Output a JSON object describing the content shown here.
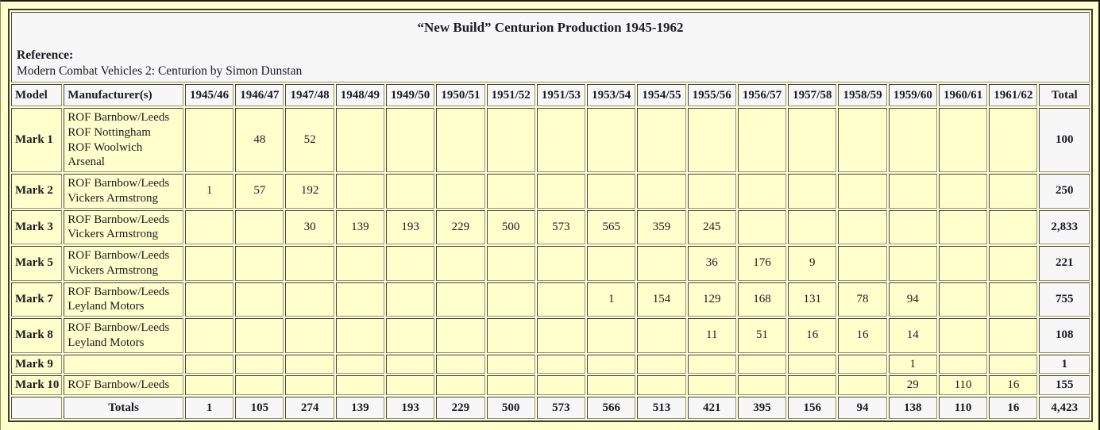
{
  "page": {
    "title": "“New Build” Centurion Production 1945-1962",
    "reference_label": "Reference:",
    "reference_text": "Modern Combat Vehicles 2: Centurion by Simon Dunstan"
  },
  "colors": {
    "page_background": "#FFFFCC",
    "data_cell_background": "#FFFFCC",
    "header_cell_background": "#F7F7F7",
    "text": "#1B1B25",
    "cell_border": "#808080",
    "table_border": "#3A3A3A"
  },
  "table": {
    "headers": [
      "Model",
      "Manufacturer(s)",
      "1945/46",
      "1946/47",
      "1947/48",
      "1948/49",
      "1949/50",
      "1950/51",
      "1951/52",
      "1951/53",
      "1953/54",
      "1954/55",
      "1955/56",
      "1956/57",
      "1957/58",
      "1958/59",
      "1959/60",
      "1960/61",
      "1961/62",
      "Total"
    ],
    "rows": [
      {
        "model": "Mark 1",
        "manufacturers": [
          "ROF Barnbow/Leeds",
          "ROF Nottingham",
          "ROF Woolwich Arsenal"
        ],
        "values": [
          "",
          "48",
          "52",
          "",
          "",
          "",
          "",
          "",
          "",
          "",
          "",
          "",
          "",
          "",
          "",
          "",
          ""
        ],
        "total": "100"
      },
      {
        "model": "Mark 2",
        "manufacturers": [
          "ROF Barnbow/Leeds",
          "Vickers Armstrong"
        ],
        "values": [
          "1",
          "57",
          "192",
          "",
          "",
          "",
          "",
          "",
          "",
          "",
          "",
          "",
          "",
          "",
          "",
          "",
          ""
        ],
        "total": "250"
      },
      {
        "model": "Mark 3",
        "manufacturers": [
          "ROF Barnbow/Leeds",
          "Vickers Armstrong"
        ],
        "values": [
          "",
          "",
          "30",
          "139",
          "193",
          "229",
          "500",
          "573",
          "565",
          "359",
          "245",
          "",
          "",
          "",
          "",
          "",
          ""
        ],
        "total": "2,833"
      },
      {
        "model": "Mark 5",
        "manufacturers": [
          "ROF Barnbow/Leeds",
          "Vickers Armstrong"
        ],
        "values": [
          "",
          "",
          "",
          "",
          "",
          "",
          "",
          "",
          "",
          "",
          "36",
          "176",
          "9",
          "",
          "",
          "",
          ""
        ],
        "total": "221"
      },
      {
        "model": "Mark 7",
        "manufacturers": [
          "ROF Barnbow/Leeds",
          "Leyland Motors"
        ],
        "values": [
          "",
          "",
          "",
          "",
          "",
          "",
          "",
          "",
          "1",
          "154",
          "129",
          "168",
          "131",
          "78",
          "94",
          "",
          ""
        ],
        "total": "755"
      },
      {
        "model": "Mark 8",
        "manufacturers": [
          "ROF Barnbow/Leeds",
          "Leyland Motors"
        ],
        "values": [
          "",
          "",
          "",
          "",
          "",
          "",
          "",
          "",
          "",
          "",
          "11",
          "51",
          "16",
          "16",
          "14",
          "",
          ""
        ],
        "total": "108"
      },
      {
        "model": "Mark 9",
        "manufacturers": [],
        "values": [
          "",
          "",
          "",
          "",
          "",
          "",
          "",
          "",
          "",
          "",
          "",
          "",
          "",
          "",
          "1",
          "",
          ""
        ],
        "total": "1"
      },
      {
        "model": "Mark 10",
        "manufacturers": [
          "ROF Barnbow/Leeds"
        ],
        "values": [
          "",
          "",
          "",
          "",
          "",
          "",
          "",
          "",
          "",
          "",
          "",
          "",
          "",
          "",
          "29",
          "110",
          "16"
        ],
        "total": "155"
      }
    ],
    "totals_label": "Totals",
    "totals": [
      "1",
      "105",
      "274",
      "139",
      "193",
      "229",
      "500",
      "573",
      "566",
      "513",
      "421",
      "395",
      "156",
      "94",
      "138",
      "110",
      "16"
    ],
    "grand_total": "4,423"
  }
}
